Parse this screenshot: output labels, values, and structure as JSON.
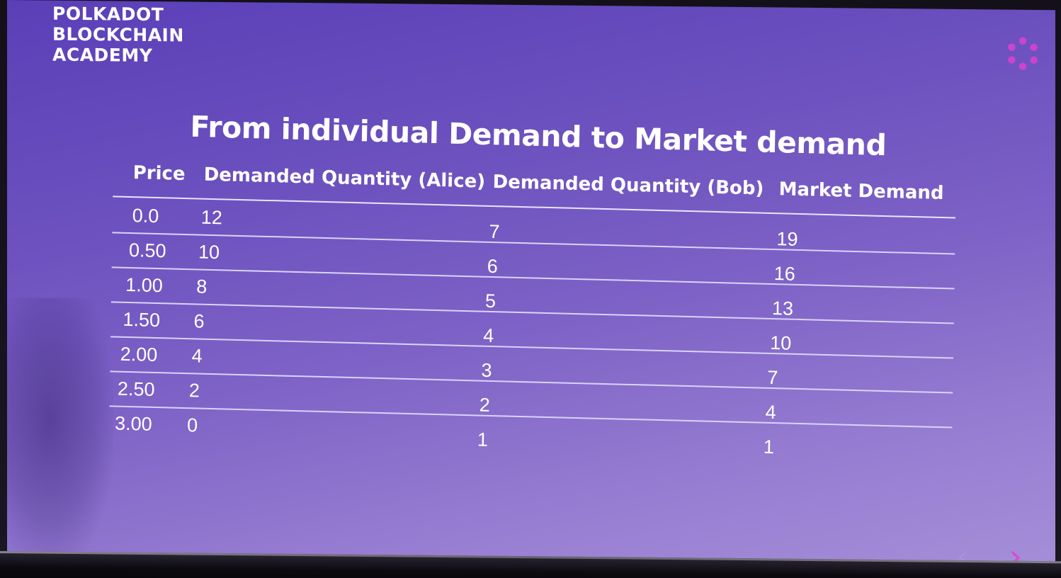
{
  "logo": {
    "lines": [
      "POLKADOT",
      "BLOCKCHAIN",
      "ACADEMY"
    ],
    "icon": "polkadot-logo-icon",
    "icon_color": "#cc44cc"
  },
  "slide": {
    "title": "From individual Demand to Market demand"
  },
  "table": {
    "headers": {
      "price": "Price",
      "alice": "Demanded Quantity (Alice)",
      "bob": "Demanded Quantity (Bob)",
      "market": "Market Demand"
    },
    "rows": [
      {
        "price": "0.0",
        "alice": "12",
        "bob": "7",
        "market": "19"
      },
      {
        "price": "0.50",
        "alice": "10",
        "bob": "6",
        "market": "16"
      },
      {
        "price": "1.00",
        "alice": "8",
        "bob": "5",
        "market": "13"
      },
      {
        "price": "1.50",
        "alice": "6",
        "bob": "4",
        "market": "10"
      },
      {
        "price": "2.00",
        "alice": "4",
        "bob": "3",
        "market": "7"
      },
      {
        "price": "2.50",
        "alice": "2",
        "bob": "2",
        "market": "4"
      },
      {
        "price": "3.00",
        "alice": "0",
        "bob": "1",
        "market": "1"
      }
    ]
  },
  "nav": {
    "prev_icon": "chevron-left-icon",
    "next_icon": "chevron-right-icon",
    "prev_glyph": "‹",
    "next_glyph": "›",
    "accent": "#d84ad8"
  },
  "colors": {
    "slide_gradient_top": "#5a3fb8",
    "slide_gradient_bottom": "#a68fd8",
    "text": "#ffffff",
    "rule": "#e8e4ff"
  }
}
